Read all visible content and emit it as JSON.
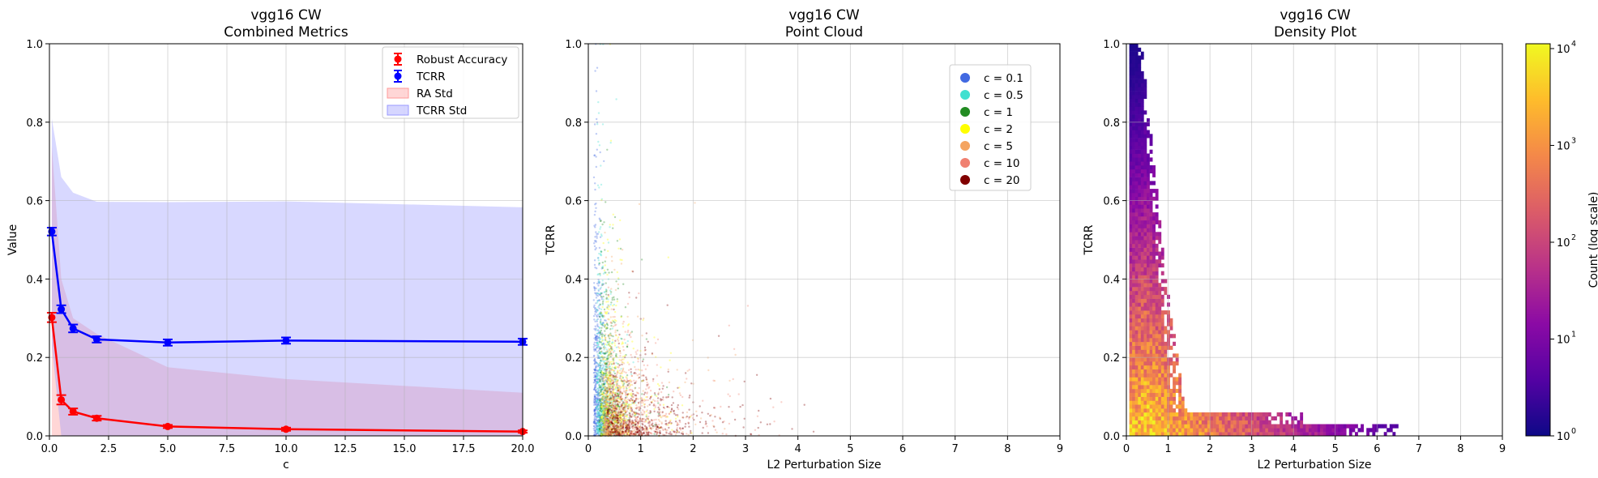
{
  "chart_data": [
    {
      "type": "line",
      "title": "vgg16 CW",
      "subtitle": "Combined Metrics",
      "xlabel": "c",
      "ylabel": "Value",
      "xlim": [
        0,
        20
      ],
      "ylim": [
        0,
        1
      ],
      "xticks": [
        "0.0",
        "2.5",
        "5.0",
        "7.5",
        "10.0",
        "12.5",
        "15.0",
        "17.5",
        "20.0"
      ],
      "yticks": [
        "0.0",
        "0.2",
        "0.4",
        "0.6",
        "0.8",
        "1.0"
      ],
      "grid": true,
      "legend_position": "top-right",
      "x": [
        0.1,
        0.5,
        1,
        2,
        5,
        10,
        20
      ],
      "series": [
        {
          "name": "Robust Accuracy",
          "color": "#ff0000",
          "values": [
            0.302,
            0.092,
            0.062,
            0.045,
            0.024,
            0.017,
            0.011
          ],
          "errors": [
            0.012,
            0.012,
            0.008,
            0.006,
            0.004,
            0.004,
            0.003
          ]
        },
        {
          "name": "TCRR",
          "color": "#0000ff",
          "values": [
            0.521,
            0.323,
            0.274,
            0.246,
            0.238,
            0.243,
            0.24
          ],
          "errors": [
            0.01,
            0.01,
            0.01,
            0.008,
            0.008,
            0.008,
            0.008
          ]
        }
      ],
      "bands": [
        {
          "name": "RA Std",
          "color": "#ff9999",
          "upper": [
            0.74,
            0.4,
            0.3,
            0.26,
            0.175,
            0.145,
            0.11
          ],
          "lower": [
            0.0,
            0.0,
            0.0,
            0.0,
            0.0,
            0.0,
            0.0
          ]
        },
        {
          "name": "TCRR Std",
          "color": "#9999ff",
          "upper": [
            0.81,
            0.66,
            0.62,
            0.597,
            0.596,
            0.598,
            0.583
          ],
          "lower": [
            0.23,
            0.0,
            0.0,
            0.0,
            0.0,
            0.0,
            0.0
          ]
        }
      ]
    },
    {
      "type": "scatter",
      "title": "vgg16 CW",
      "subtitle": "Point Cloud",
      "xlabel": "L2 Perturbation Size",
      "ylabel": "TCRR",
      "xlim": [
        0,
        9
      ],
      "ylim": [
        0,
        1
      ],
      "xticks": [
        "0",
        "1",
        "2",
        "3",
        "4",
        "5",
        "6",
        "7",
        "8",
        "9"
      ],
      "yticks": [
        "0.0",
        "0.2",
        "0.4",
        "0.6",
        "0.8",
        "1.0"
      ],
      "grid": true,
      "legend_position": "top-right",
      "series": [
        {
          "name": "c = 0.1",
          "color": "#4169e1",
          "x_center": 0.3,
          "x_spread": 0.12,
          "y_decay": 0.3
        },
        {
          "name": "c = 0.5",
          "color": "#40e0d0",
          "x_center": 0.45,
          "x_spread": 0.18,
          "y_decay": 0.25
        },
        {
          "name": "c = 1",
          "color": "#228b22",
          "x_center": 0.6,
          "x_spread": 0.25,
          "y_decay": 0.22
        },
        {
          "name": "c = 2",
          "color": "#ffff00",
          "x_center": 0.7,
          "x_spread": 0.3,
          "y_decay": 0.2
        },
        {
          "name": "c = 5",
          "color": "#f4a460",
          "x_center": 0.8,
          "x_spread": 0.4,
          "y_decay": 0.15
        },
        {
          "name": "c = 10",
          "color": "#f08070",
          "x_center": 0.9,
          "x_spread": 0.55,
          "y_decay": 0.12
        },
        {
          "name": "c = 20",
          "color": "#800000",
          "x_center": 1.0,
          "x_spread": 0.7,
          "y_decay": 0.1
        }
      ]
    },
    {
      "type": "heatmap",
      "title": "vgg16 CW",
      "subtitle": "Density Plot",
      "xlabel": "L2 Perturbation Size",
      "ylabel": "TCRR",
      "xlim": [
        0,
        9
      ],
      "ylim": [
        0,
        1
      ],
      "xticks": [
        "0",
        "1",
        "2",
        "3",
        "4",
        "5",
        "6",
        "7",
        "8",
        "9"
      ],
      "yticks": [
        "0.0",
        "0.2",
        "0.4",
        "0.6",
        "0.8",
        "1.0"
      ],
      "grid": true,
      "colormap": "plasma",
      "log_scale": true,
      "colorbar_label": "Count (log scale)",
      "colorbar_range": [
        1,
        10000
      ],
      "colorbar_ticks": [
        "10",
        "10",
        "10",
        "10",
        "10"
      ],
      "colorbar_exponents": [
        "0",
        "1",
        "2",
        "3",
        "4"
      ],
      "max_x_extent": 6.5
    }
  ]
}
